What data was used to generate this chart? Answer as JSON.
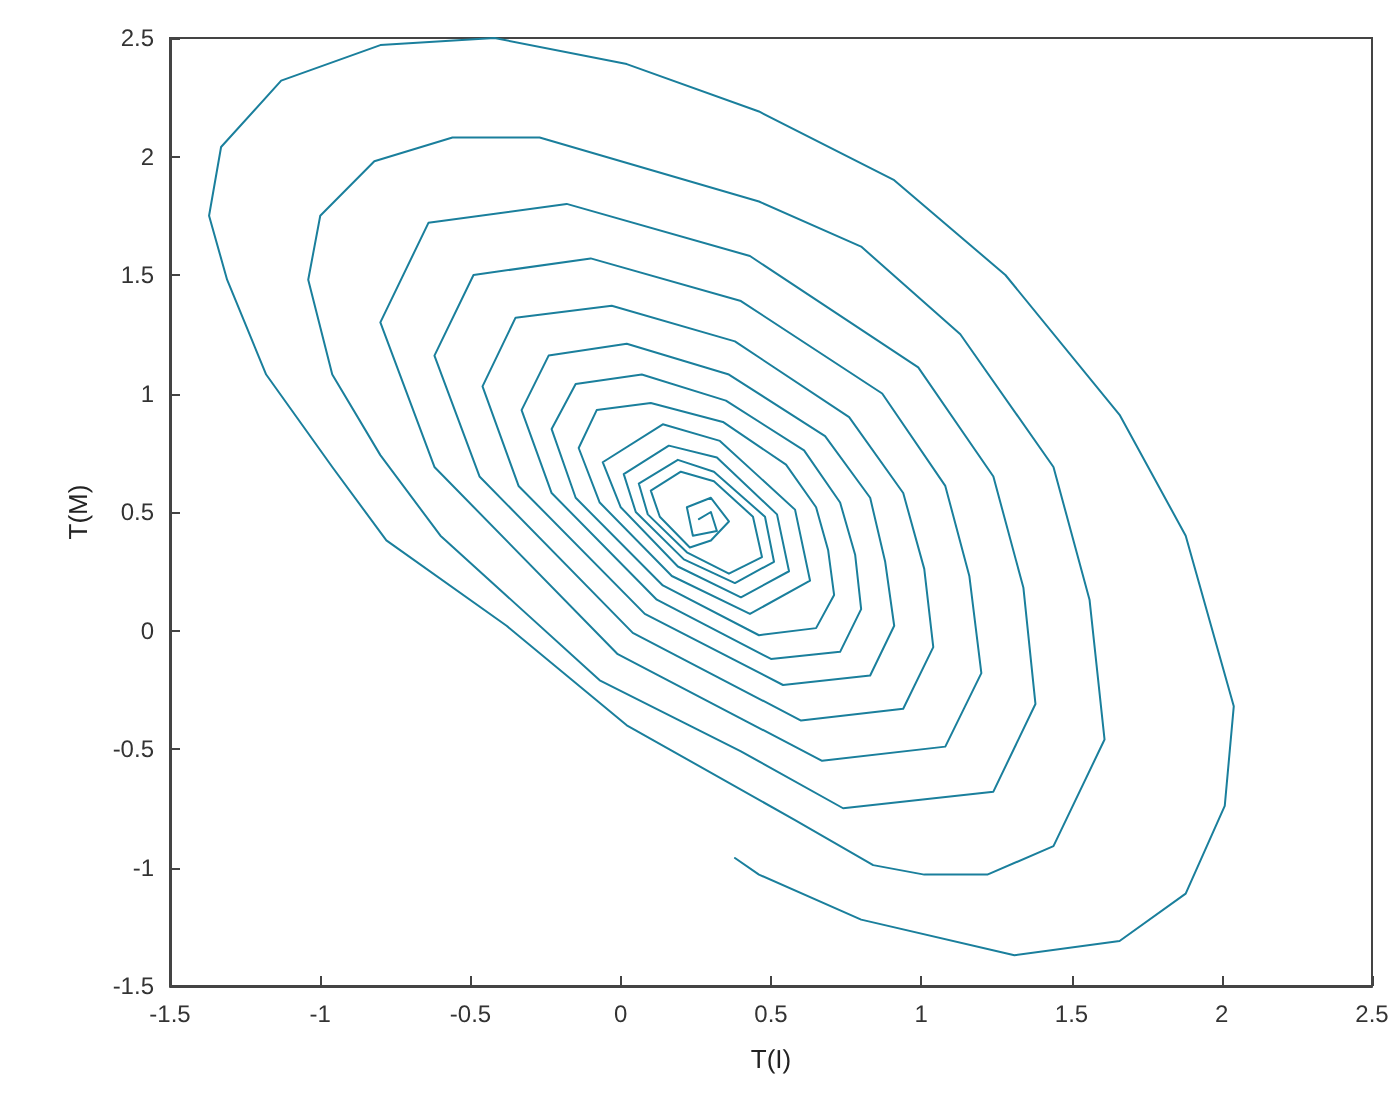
{
  "chart_data": {
    "type": "line",
    "xlabel": "T(I)",
    "ylabel": "T(M)",
    "xlim": [
      -1.5,
      2.5
    ],
    "ylim": [
      -1.5,
      2.5
    ],
    "xticks": [
      -1.5,
      -1,
      -0.5,
      0,
      0.5,
      1,
      1.5,
      2,
      2.5
    ],
    "yticks": [
      -1.5,
      -1,
      -0.5,
      0,
      0.5,
      1,
      1.5,
      2,
      2.5
    ],
    "grid": false,
    "series": [
      {
        "color": "#1a7f9c",
        "x": [
          0.38,
          0.46,
          0.8,
          1.31,
          1.66,
          1.88,
          2.01,
          2.04,
          1.88,
          1.66,
          1.28,
          0.91,
          0.46,
          0.02,
          -0.42,
          -0.8,
          -1.13,
          -1.33,
          -1.37,
          -1.31,
          -1.18,
          -0.96,
          -0.78,
          -0.38,
          0.02,
          0.58,
          0.84,
          1.01,
          1.22,
          1.44,
          1.61,
          1.56,
          1.44,
          1.13,
          0.8,
          0.46,
          -0.27,
          -0.56,
          -0.82,
          -1.0,
          -1.04,
          -0.96,
          -0.8,
          -0.6,
          -0.07,
          0.4,
          0.74,
          1.24,
          1.38,
          1.34,
          1.24,
          0.99,
          0.43,
          -0.18,
          -0.64,
          -0.8,
          -0.62,
          -0.01,
          0.67,
          1.08,
          1.2,
          1.16,
          1.08,
          0.87,
          0.4,
          -0.1,
          -0.49,
          -0.62,
          -0.47,
          0.04,
          0.6,
          0.94,
          1.04,
          1.01,
          0.94,
          0.76,
          0.38,
          -0.03,
          -0.35,
          -0.46,
          -0.34,
          0.08,
          0.54,
          0.83,
          0.91,
          0.88,
          0.83,
          0.68,
          0.36,
          0.02,
          -0.24,
          -0.33,
          -0.23,
          0.12,
          0.5,
          0.73,
          0.8,
          0.78,
          0.73,
          0.61,
          0.35,
          0.07,
          -0.15,
          -0.23,
          -0.15,
          0.14,
          0.46,
          0.65,
          0.71,
          0.69,
          0.65,
          0.55,
          0.34,
          0.1,
          -0.08,
          -0.14,
          -0.07,
          0.17,
          0.43,
          0.63,
          0.58,
          0.33,
          0.14,
          -0.06,
          0.0,
          0.19,
          0.4,
          0.56,
          0.52,
          0.32,
          0.16,
          0.01,
          0.05,
          0.21,
          0.38,
          0.51,
          0.48,
          0.31,
          0.19,
          0.06,
          0.09,
          0.22,
          0.36,
          0.47,
          0.44,
          0.31,
          0.2,
          0.1,
          0.13,
          0.23,
          0.3,
          0.36,
          0.3,
          0.22,
          0.24,
          0.32,
          0.3,
          0.26
        ],
        "values": [
          -0.96,
          -1.03,
          -1.22,
          -1.37,
          -1.31,
          -1.11,
          -0.74,
          -0.32,
          0.4,
          0.91,
          1.5,
          1.9,
          2.19,
          2.39,
          2.5,
          2.47,
          2.32,
          2.04,
          1.75,
          1.48,
          1.08,
          0.69,
          0.38,
          0.02,
          -0.4,
          -0.8,
          -0.99,
          -1.03,
          -1.03,
          -0.91,
          -0.46,
          0.13,
          0.69,
          1.25,
          1.62,
          1.81,
          2.08,
          2.08,
          1.98,
          1.75,
          1.48,
          1.08,
          0.74,
          0.4,
          -0.21,
          -0.51,
          -0.75,
          -0.68,
          -0.31,
          0.18,
          0.65,
          1.11,
          1.58,
          1.8,
          1.72,
          1.3,
          0.69,
          -0.1,
          -0.55,
          -0.49,
          -0.18,
          0.23,
          0.61,
          1.0,
          1.39,
          1.57,
          1.5,
          1.16,
          0.65,
          -0.01,
          -0.38,
          -0.33,
          -0.07,
          0.26,
          0.58,
          0.9,
          1.22,
          1.37,
          1.32,
          1.03,
          0.61,
          0.07,
          -0.23,
          -0.19,
          0.02,
          0.29,
          0.56,
          0.82,
          1.08,
          1.21,
          1.16,
          0.93,
          0.58,
          0.13,
          -0.12,
          -0.09,
          0.09,
          0.32,
          0.54,
          0.76,
          0.97,
          1.08,
          1.04,
          0.85,
          0.56,
          0.19,
          -0.02,
          0.01,
          0.15,
          0.34,
          0.52,
          0.7,
          0.88,
          0.96,
          0.93,
          0.77,
          0.54,
          0.23,
          0.07,
          0.21,
          0.51,
          0.8,
          0.87,
          0.71,
          0.52,
          0.27,
          0.14,
          0.25,
          0.49,
          0.73,
          0.78,
          0.66,
          0.5,
          0.3,
          0.2,
          0.29,
          0.48,
          0.67,
          0.72,
          0.62,
          0.49,
          0.33,
          0.24,
          0.31,
          0.48,
          0.63,
          0.67,
          0.59,
          0.48,
          0.35,
          0.38,
          0.46,
          0.56,
          0.52,
          0.4,
          0.42,
          0.5,
          0.47
        ]
      }
    ]
  }
}
